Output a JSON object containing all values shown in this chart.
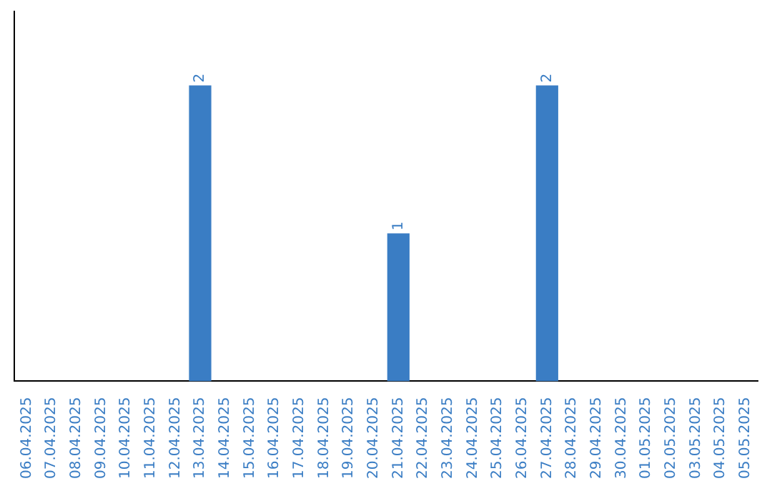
{
  "chart_data": {
    "type": "bar",
    "categories": [
      "06.04.2025",
      "07.04.2025",
      "08.04.2025",
      "09.04.2025",
      "10.04.2025",
      "11.04.2025",
      "12.04.2025",
      "13.04.2025",
      "14.04.2025",
      "15.04.2025",
      "16.04.2025",
      "17.04.2025",
      "18.04.2025",
      "19.04.2025",
      "20.04.2025",
      "21.04.2025",
      "22.04.2025",
      "23.04.2025",
      "24.04.2025",
      "25.04.2025",
      "26.04.2025",
      "27.04.2025",
      "28.04.2025",
      "29.04.2025",
      "30.04.2025",
      "01.05.2025",
      "02.05.2025",
      "03.05.2025",
      "04.05.2025",
      "05.05.2025"
    ],
    "values": [
      0,
      0,
      0,
      0,
      0,
      0,
      0,
      2,
      0,
      0,
      0,
      0,
      0,
      0,
      0,
      1,
      0,
      0,
      0,
      0,
      0,
      2,
      0,
      0,
      0,
      0,
      0,
      0,
      0,
      0
    ],
    "value_labels": [
      null,
      null,
      null,
      null,
      null,
      null,
      null,
      "2",
      null,
      null,
      null,
      null,
      null,
      null,
      null,
      "1",
      null,
      null,
      null,
      null,
      null,
      "2",
      null,
      null,
      null,
      null,
      null,
      null,
      null,
      null
    ],
    "color": "#3a7dc4",
    "grid": false,
    "tick_labels": "x",
    "legend": false
  }
}
